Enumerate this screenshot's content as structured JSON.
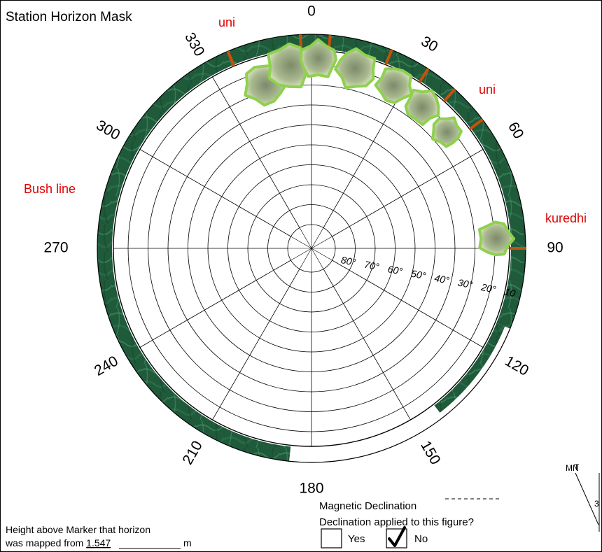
{
  "title": "Station Horizon Mask",
  "azimuth_labels": [
    "0",
    "30",
    "60",
    "90",
    "120",
    "150",
    "180",
    "210",
    "240",
    "270",
    "300",
    "330"
  ],
  "elevation_labels": [
    "80°",
    "70°",
    "60°",
    "50°",
    "40°",
    "30°",
    "20°",
    "10"
  ],
  "obstruction_labels": {
    "uni_top": "uni",
    "uni_right": "uni",
    "kuredhi": "kuredhi",
    "bush_line": "Bush line"
  },
  "magnetic_declination": {
    "title": "Magnetic Declination",
    "question": "Declination applied to this figure?",
    "yes_label": "Yes",
    "no_label": "No",
    "yes_checked": false,
    "no_checked": true
  },
  "height_note": {
    "line1": "Height above Marker that horizon",
    "line2_prefix": "was mapped from",
    "value": "1.547",
    "unit": "m"
  },
  "compass": {
    "true_north": "T",
    "magnetic_north": "MN",
    "partial_value": "3"
  },
  "colors": {
    "vegetation": "#1f5a3a",
    "tree_outline": "#8fd14f",
    "label_red": "#e00000",
    "pole": "#c8500a"
  }
}
